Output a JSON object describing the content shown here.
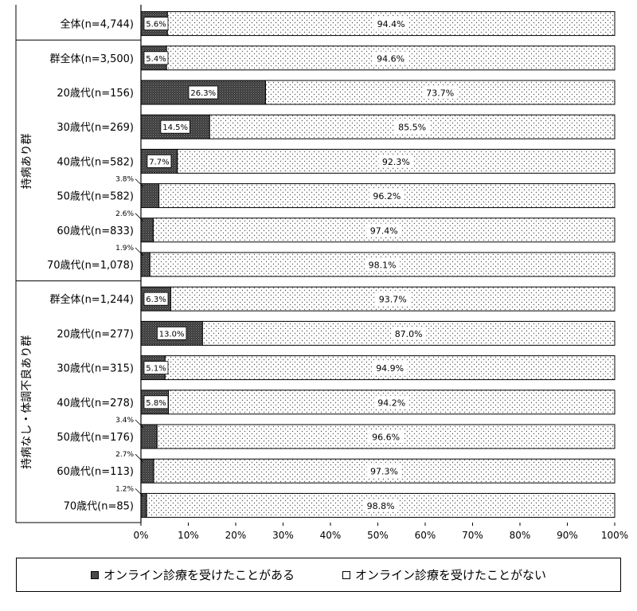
{
  "chart_data": {
    "type": "bar",
    "orientation": "horizontal",
    "stacked": "percent",
    "xlim": [
      0,
      100
    ],
    "xticks": [
      "0%",
      "10%",
      "20%",
      "30%",
      "40%",
      "50%",
      "60%",
      "70%",
      "80%",
      "90%",
      "100%"
    ],
    "series": [
      {
        "name": "オンライン診療を受けたことがある",
        "color": "#4a4a4a",
        "pattern": "dense-dark"
      },
      {
        "name": "オンライン診療を受けたことがない",
        "color": "#ffffff",
        "pattern": "dotted"
      }
    ],
    "groups": [
      {
        "name": "",
        "rows": [
          {
            "label": "全体(n=4,744)",
            "yes": 5.6,
            "no": 94.4,
            "yes_label": "5.6%",
            "no_label": "94.4%"
          }
        ]
      },
      {
        "name": "持病あり群",
        "rows": [
          {
            "label": "群全体(n=3,500)",
            "yes": 5.4,
            "no": 94.6,
            "yes_label": "5.4%",
            "no_label": "94.6%"
          },
          {
            "label": "20歳代(n=156)",
            "yes": 26.3,
            "no": 73.7,
            "yes_label": "26.3%",
            "no_label": "73.7%"
          },
          {
            "label": "30歳代(n=269)",
            "yes": 14.5,
            "no": 85.5,
            "yes_label": "14.5%",
            "no_label": "85.5%"
          },
          {
            "label": "40歳代(n=582)",
            "yes": 7.7,
            "no": 92.3,
            "yes_label": "7.7%",
            "no_label": "92.3%"
          },
          {
            "label": "50歳代(n=582)",
            "yes": 3.8,
            "no": 96.2,
            "yes_label": "3.8%",
            "no_label": "96.2%",
            "outside": true
          },
          {
            "label": "60歳代(n=833)",
            "yes": 2.6,
            "no": 97.4,
            "yes_label": "2.6%",
            "no_label": "97.4%",
            "outside": true
          },
          {
            "label": "70歳代(n=1,078)",
            "yes": 1.9,
            "no": 98.1,
            "yes_label": "1.9%",
            "no_label": "98.1%",
            "outside": true
          }
        ]
      },
      {
        "name": "持病なし・体調不良あり群",
        "rows": [
          {
            "label": "群全体(n=1,244)",
            "yes": 6.3,
            "no": 93.7,
            "yes_label": "6.3%",
            "no_label": "93.7%"
          },
          {
            "label": "20歳代(n=277)",
            "yes": 13.0,
            "no": 87.0,
            "yes_label": "13.0%",
            "no_label": "87.0%"
          },
          {
            "label": "30歳代(n=315)",
            "yes": 5.1,
            "no": 94.9,
            "yes_label": "5.1%",
            "no_label": "94.9%"
          },
          {
            "label": "40歳代(n=278)",
            "yes": 5.8,
            "no": 94.2,
            "yes_label": "5.8%",
            "no_label": "94.2%"
          },
          {
            "label": "50歳代(n=176)",
            "yes": 3.4,
            "no": 96.6,
            "yes_label": "3.4%",
            "no_label": "96.6%",
            "outside": true
          },
          {
            "label": "60歳代(n=113)",
            "yes": 2.7,
            "no": 97.3,
            "yes_label": "2.7%",
            "no_label": "97.3%",
            "outside": true
          },
          {
            "label": "70歳代(n=85)",
            "yes": 1.2,
            "no": 98.8,
            "yes_label": "1.2%",
            "no_label": "98.8%",
            "outside": true
          }
        ]
      }
    ],
    "legend_position": "bottom",
    "grid": false
  }
}
